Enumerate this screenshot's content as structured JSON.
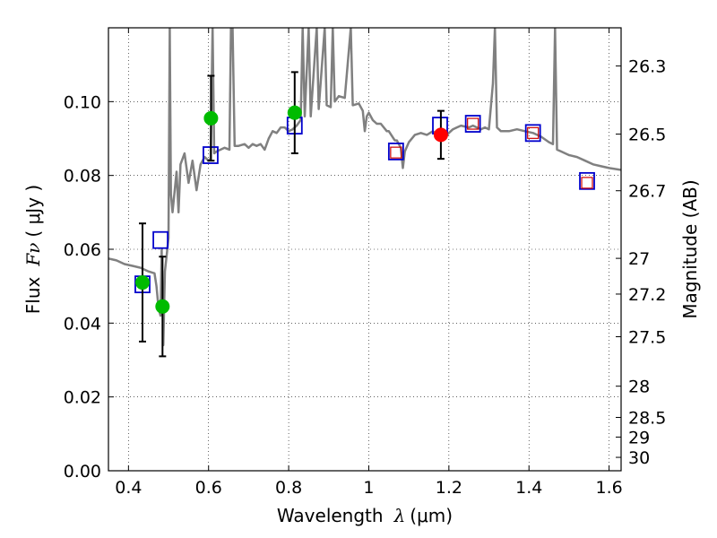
{
  "chart_data": {
    "type": "scatter",
    "title": "",
    "xlabel_text": "Wavelength",
    "xlabel_symbol": "λ",
    "xlabel_unit": "(μm)",
    "ylabel_text": "Flux",
    "ylabel_symbol": "Fν",
    "ylabel_unit": "( μJy )",
    "y2label": "Magnitude (AB)",
    "xlim": [
      0.35,
      1.63
    ],
    "ylim": [
      0.0,
      0.12
    ],
    "grid": true,
    "x_ticks": [
      0.4,
      0.6,
      0.8,
      1.0,
      1.2,
      1.4,
      1.6
    ],
    "x_tick_labels": [
      "0.4",
      "0.6",
      "0.8",
      "1",
      "1.2",
      "1.4",
      "1.6"
    ],
    "y_ticks": [
      0.0,
      0.02,
      0.04,
      0.06,
      0.08,
      0.1
    ],
    "y_tick_labels": [
      "0.00",
      "0.02",
      "0.04",
      "0.06",
      "0.08",
      "0.10"
    ],
    "y2_ticks": [
      {
        "mag": 26.3,
        "label": "26.3"
      },
      {
        "mag": 26.5,
        "label": "26.5"
      },
      {
        "mag": 26.7,
        "label": "26.7"
      },
      {
        "mag": 27.0,
        "label": "27"
      },
      {
        "mag": 27.2,
        "label": "27.2"
      },
      {
        "mag": 27.5,
        "label": "27.5"
      },
      {
        "mag": 28.0,
        "label": "28"
      },
      {
        "mag": 28.5,
        "label": "28.5"
      },
      {
        "mag": 29.0,
        "label": "29"
      },
      {
        "mag": 30.0,
        "label": "30"
      }
    ],
    "model_spectrum": {
      "name": "model SED",
      "color": "#808080",
      "points": [
        [
          0.35,
          0.0575
        ],
        [
          0.37,
          0.057
        ],
        [
          0.39,
          0.056
        ],
        [
          0.41,
          0.0555
        ],
        [
          0.43,
          0.055
        ],
        [
          0.45,
          0.054
        ],
        [
          0.465,
          0.0535
        ],
        [
          0.47,
          0.05
        ],
        [
          0.475,
          0.044
        ],
        [
          0.48,
          0.042
        ],
        [
          0.483,
          0.06
        ],
        [
          0.487,
          0.034
        ],
        [
          0.491,
          0.054
        ],
        [
          0.495,
          0.058
        ],
        [
          0.5,
          0.063
        ],
        [
          0.503,
          0.12
        ],
        [
          0.506,
          0.075
        ],
        [
          0.51,
          0.07
        ],
        [
          0.52,
          0.081
        ],
        [
          0.525,
          0.07
        ],
        [
          0.53,
          0.083
        ],
        [
          0.54,
          0.086
        ],
        [
          0.55,
          0.078
        ],
        [
          0.56,
          0.084
        ],
        [
          0.57,
          0.076
        ],
        [
          0.58,
          0.083
        ],
        [
          0.59,
          0.085
        ],
        [
          0.6,
          0.084
        ],
        [
          0.605,
          0.0845
        ],
        [
          0.61,
          0.12
        ],
        [
          0.614,
          0.086
        ],
        [
          0.62,
          0.0865
        ],
        [
          0.63,
          0.087
        ],
        [
          0.64,
          0.0875
        ],
        [
          0.652,
          0.087
        ],
        [
          0.656,
          0.12
        ],
        [
          0.66,
          0.12
        ],
        [
          0.665,
          0.088
        ],
        [
          0.675,
          0.088
        ],
        [
          0.69,
          0.0885
        ],
        [
          0.7,
          0.0875
        ],
        [
          0.71,
          0.0885
        ],
        [
          0.72,
          0.088
        ],
        [
          0.73,
          0.0885
        ],
        [
          0.74,
          0.087
        ],
        [
          0.75,
          0.09
        ],
        [
          0.76,
          0.092
        ],
        [
          0.77,
          0.0915
        ],
        [
          0.78,
          0.093
        ],
        [
          0.79,
          0.093
        ],
        [
          0.8,
          0.092
        ],
        [
          0.81,
          0.0925
        ],
        [
          0.82,
          0.0935
        ],
        [
          0.83,
          0.095
        ],
        [
          0.835,
          0.12
        ],
        [
          0.84,
          0.096
        ],
        [
          0.85,
          0.12
        ],
        [
          0.855,
          0.096
        ],
        [
          0.87,
          0.12
        ],
        [
          0.875,
          0.098
        ],
        [
          0.89,
          0.12
        ],
        [
          0.895,
          0.099
        ],
        [
          0.905,
          0.0985
        ],
        [
          0.91,
          0.12
        ],
        [
          0.915,
          0.1
        ],
        [
          0.925,
          0.1015
        ],
        [
          0.94,
          0.101
        ],
        [
          0.955,
          0.12
        ],
        [
          0.96,
          0.099
        ],
        [
          0.975,
          0.0995
        ],
        [
          0.985,
          0.0975
        ],
        [
          0.99,
          0.092
        ],
        [
          0.995,
          0.096
        ],
        [
          1.0,
          0.097
        ],
        [
          1.01,
          0.095
        ],
        [
          1.02,
          0.094
        ],
        [
          1.03,
          0.094
        ],
        [
          1.045,
          0.092
        ],
        [
          1.05,
          0.092
        ],
        [
          1.065,
          0.0895
        ],
        [
          1.07,
          0.0895
        ],
        [
          1.08,
          0.0875
        ],
        [
          1.085,
          0.082
        ],
        [
          1.09,
          0.0865
        ],
        [
          1.1,
          0.089
        ],
        [
          1.115,
          0.091
        ],
        [
          1.13,
          0.0915
        ],
        [
          1.145,
          0.091
        ],
        [
          1.16,
          0.092
        ],
        [
          1.17,
          0.091
        ],
        [
          1.18,
          0.0905
        ],
        [
          1.19,
          0.09
        ],
        [
          1.2,
          0.0915
        ],
        [
          1.21,
          0.0925
        ],
        [
          1.22,
          0.093
        ],
        [
          1.23,
          0.0935
        ],
        [
          1.25,
          0.093
        ],
        [
          1.26,
          0.0935
        ],
        [
          1.28,
          0.0925
        ],
        [
          1.29,
          0.093
        ],
        [
          1.3,
          0.0925
        ],
        [
          1.31,
          0.105
        ],
        [
          1.315,
          0.12
        ],
        [
          1.32,
          0.093
        ],
        [
          1.33,
          0.092
        ],
        [
          1.35,
          0.092
        ],
        [
          1.37,
          0.0925
        ],
        [
          1.39,
          0.092
        ],
        [
          1.41,
          0.0915
        ],
        [
          1.43,
          0.0905
        ],
        [
          1.45,
          0.089
        ],
        [
          1.46,
          0.0885
        ],
        [
          1.465,
          0.12
        ],
        [
          1.47,
          0.087
        ],
        [
          1.48,
          0.0865
        ],
        [
          1.5,
          0.0855
        ],
        [
          1.52,
          0.085
        ],
        [
          1.54,
          0.084
        ],
        [
          1.56,
          0.083
        ],
        [
          1.58,
          0.0825
        ],
        [
          1.6,
          0.082
        ],
        [
          1.63,
          0.0815
        ]
      ]
    },
    "series": [
      {
        "name": "observed (green)",
        "color": "#00bb00",
        "points": [
          {
            "x": 0.435,
            "y": 0.051,
            "err": 0.016
          },
          {
            "x": 0.485,
            "y": 0.0445,
            "err": 0.0135
          },
          {
            "x": 0.606,
            "y": 0.0955,
            "err": 0.0115
          },
          {
            "x": 0.815,
            "y": 0.097,
            "err": 0.011
          }
        ]
      },
      {
        "name": "observed (red)",
        "color": "#ff0000",
        "points": [
          {
            "x": 1.18,
            "y": 0.091,
            "err": 0.0065
          }
        ]
      },
      {
        "name": "model photometry (blue squares)",
        "color": "#0000cc",
        "points": [
          {
            "x": 0.435,
            "y": 0.0505
          },
          {
            "x": 0.48,
            "y": 0.0625
          },
          {
            "x": 0.605,
            "y": 0.0855
          },
          {
            "x": 0.815,
            "y": 0.0935
          },
          {
            "x": 1.068,
            "y": 0.0865
          },
          {
            "x": 1.178,
            "y": 0.0935
          },
          {
            "x": 1.26,
            "y": 0.094
          },
          {
            "x": 1.41,
            "y": 0.0915
          },
          {
            "x": 1.545,
            "y": 0.0785
          }
        ]
      },
      {
        "name": "photometry (red squares)",
        "color": "#cc0000",
        "points": [
          {
            "x": 1.068,
            "y": 0.0862
          },
          {
            "x": 1.26,
            "y": 0.094
          },
          {
            "x": 1.41,
            "y": 0.0915
          },
          {
            "x": 1.545,
            "y": 0.078
          }
        ]
      }
    ]
  }
}
